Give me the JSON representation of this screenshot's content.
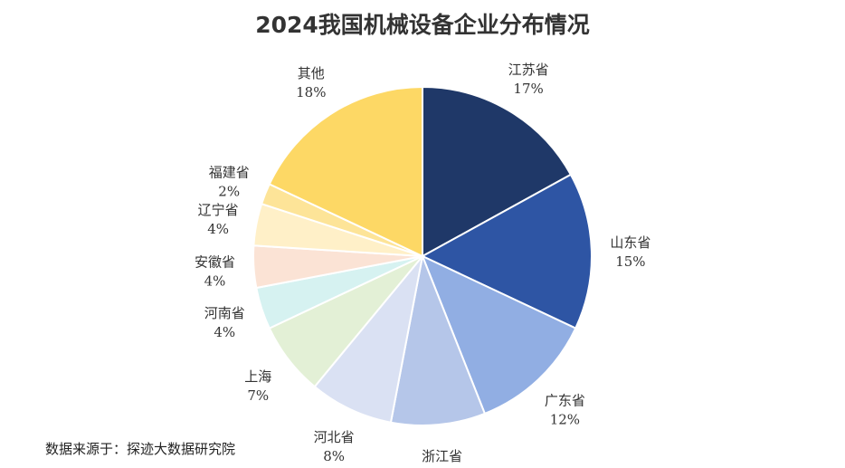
{
  "chart_data": {
    "type": "pie",
    "title": "2024我国机械设备企业分布情况",
    "slices": [
      {
        "label": "江苏省",
        "value": 17,
        "value_label": "17%",
        "color": "#1f3868"
      },
      {
        "label": "山东省",
        "value": 15,
        "value_label": "15%",
        "color": "#2e55a4"
      },
      {
        "label": "广东省",
        "value": 12,
        "value_label": "12%",
        "color": "#91aee3"
      },
      {
        "label": "浙江省",
        "value": 9,
        "value_label": "9%",
        "color": "#b5c6e9"
      },
      {
        "label": "河北省",
        "value": 8,
        "value_label": "8%",
        "color": "#dae1f3"
      },
      {
        "label": "上海",
        "value": 7,
        "value_label": "7%",
        "color": "#e3f0d6"
      },
      {
        "label": "河南省",
        "value": 4,
        "value_label": "4%",
        "color": "#d6f2f1"
      },
      {
        "label": "安徽省",
        "value": 4,
        "value_label": "4%",
        "color": "#fbe3d5"
      },
      {
        "label": "辽宁省",
        "value": 4,
        "value_label": "4%",
        "color": "#fff0c8"
      },
      {
        "label": "福建省",
        "value": 2,
        "value_label": "2%",
        "color": "#fde498"
      },
      {
        "label": "其他",
        "value": 18,
        "value_label": "18%",
        "color": "#fdd865"
      }
    ]
  },
  "source": "数据来源于：探迹大数据研究院"
}
